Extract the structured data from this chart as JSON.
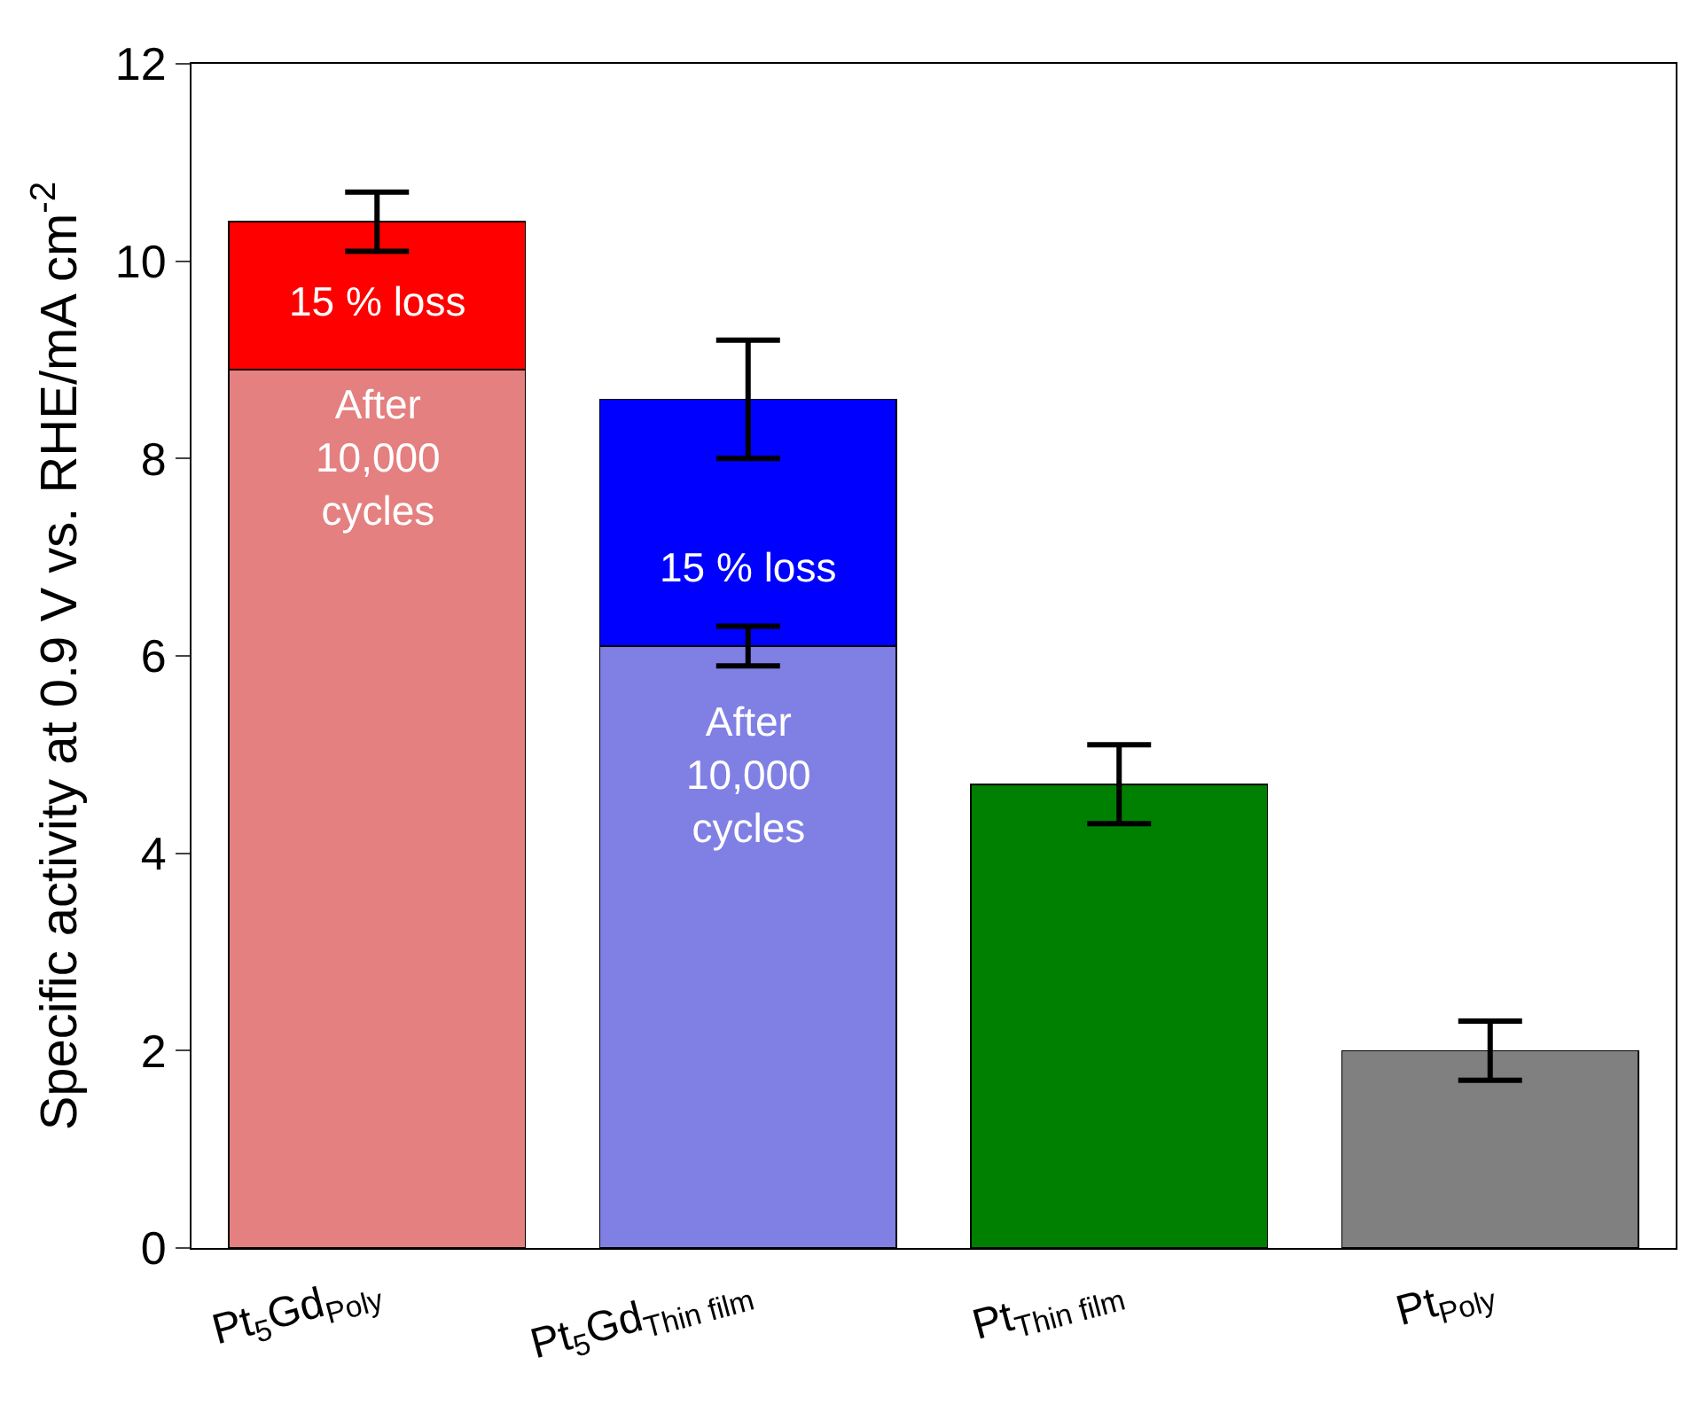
{
  "chart_data": {
    "type": "bar",
    "stacked": true,
    "ylabel": "Specific activity at 0.9 V vs. RHE/mA cm$^{-2}$",
    "categories": [
      "Pt$_{5}$Gd$_{Poly}$",
      "Pt$_{5}$Gd$_{Thin film}$",
      "Pt$_{Thin film}$",
      "Pt$_{Poly}$"
    ],
    "series": [
      {
        "colors": [
          "#e48080",
          "#8080e4",
          "#008000",
          "#808080"
        ],
        "values": [
          8.9,
          6.1,
          4.7,
          2.0
        ],
        "errors": [
          null,
          [
            5.9,
            6.3
          ],
          [
            4.3,
            5.1
          ],
          [
            1.7,
            2.3
          ]
        ]
      },
      {
        "colors": [
          "#ff0000",
          "#0000ff",
          "#ff0000",
          "#0000ff"
        ],
        "values": [
          1.5,
          2.5,
          null,
          null
        ],
        "errors": [
          [
            10.1,
            10.7
          ],
          [
            8.0,
            9.2
          ],
          null,
          null
        ]
      }
    ],
    "ylim": [
      0,
      12
    ],
    "yticks": [
      0,
      2,
      4,
      6,
      8,
      10,
      12
    ],
    "grid": false,
    "annotations": [
      "15 % loss",
      "After\n10,000\ncycles",
      "15 % loss",
      "After\n10,000\ncycles"
    ]
  }
}
